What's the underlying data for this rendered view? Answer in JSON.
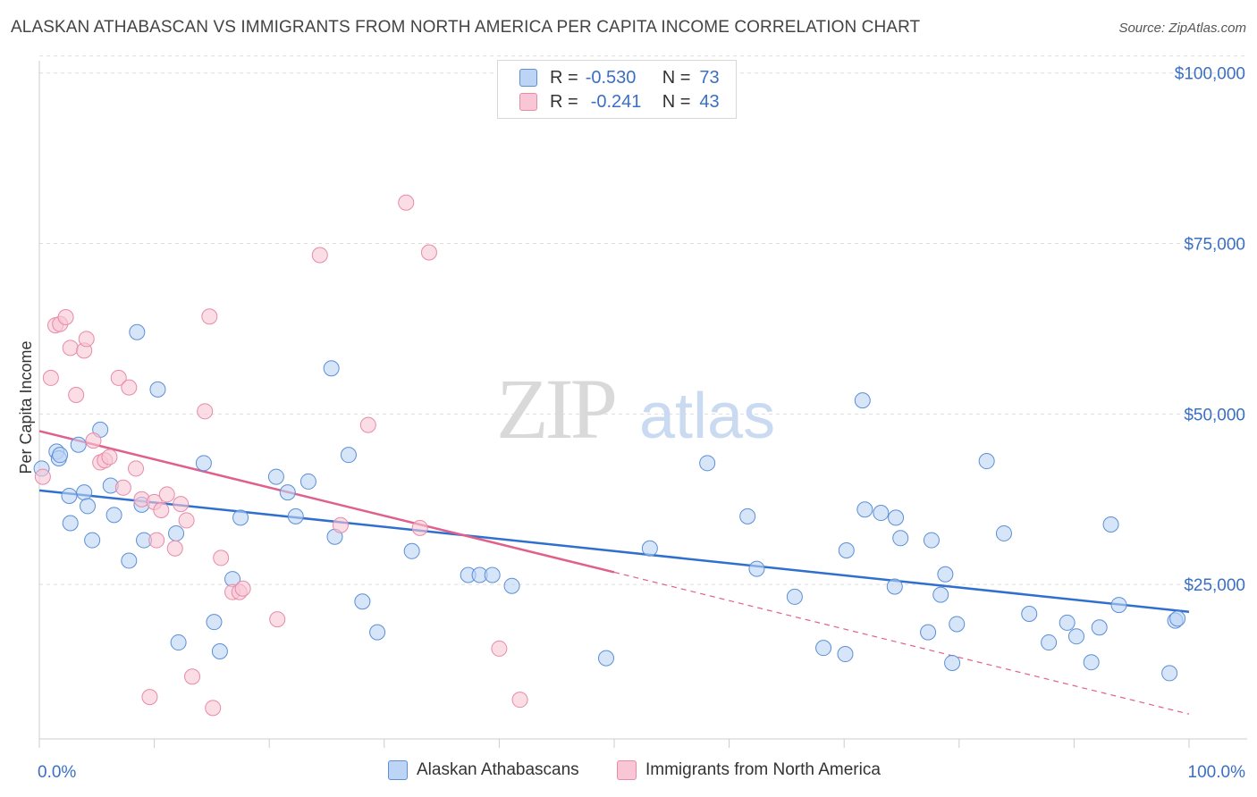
{
  "title": "ALASKAN ATHABASCAN VS IMMIGRANTS FROM NORTH AMERICA PER CAPITA INCOME CORRELATION CHART",
  "source": "Source: ZipAtlas.com",
  "watermark": {
    "zip": "ZIP",
    "atlas": "atlas"
  },
  "legend": {
    "rows": [
      {
        "r_label": "R =",
        "r_value": "-0.530",
        "n_label": "N =",
        "n_value": "73"
      },
      {
        "r_label": "R =",
        "r_value": "-0.241",
        "n_label": "N =",
        "n_value": "43"
      }
    ]
  },
  "bottom_legend": [
    "Alaskan Athabascans",
    "Immigrants from North America"
  ],
  "colors": {
    "blue_fill": "#bcd4f5",
    "blue_stroke": "#5b8fd6",
    "blue_line": "#2f6fce",
    "pink_fill": "#f8c6d5",
    "pink_stroke": "#e88aa8",
    "pink_line": "#e0608c",
    "axis_text": "#3a6fc4",
    "grid": "#dddddd"
  },
  "chart_data": {
    "type": "scatter",
    "title": "ALASKAN ATHABASCAN VS IMMIGRANTS FROM NORTH AMERICA PER CAPITA INCOME CORRELATION CHART",
    "xlabel": "",
    "ylabel": "Per Capita Income",
    "xlim": [
      0,
      100
    ],
    "ylim": [
      0,
      105000
    ],
    "x_tick_labels": [
      "0.0%",
      "100.0%"
    ],
    "y_ticks": [
      25000,
      50000,
      75000,
      100000
    ],
    "y_tick_labels": [
      "$25,000",
      "$50,000",
      "$75,000",
      "$100,000"
    ],
    "grid": true,
    "legend_position": "top-center",
    "series": [
      {
        "name": "Alaskan Athabascans",
        "points": [
          [
            0.2,
            42000
          ],
          [
            1.5,
            44500
          ],
          [
            1.7,
            43500
          ],
          [
            1.8,
            44000
          ],
          [
            2.6,
            38000
          ],
          [
            2.7,
            34000
          ],
          [
            3.4,
            45500
          ],
          [
            3.9,
            38500
          ],
          [
            4.2,
            36500
          ],
          [
            4.6,
            31500
          ],
          [
            5.3,
            47700
          ],
          [
            6.2,
            39500
          ],
          [
            6.5,
            35200
          ],
          [
            7.8,
            28500
          ],
          [
            8.5,
            62000
          ],
          [
            8.9,
            36700
          ],
          [
            9.1,
            31500
          ],
          [
            10.3,
            53600
          ],
          [
            11.9,
            32500
          ],
          [
            12.1,
            16500
          ],
          [
            14.3,
            42800
          ],
          [
            15.2,
            19500
          ],
          [
            15.7,
            15200
          ],
          [
            16.8,
            25800
          ],
          [
            17.5,
            34800
          ],
          [
            20.6,
            40800
          ],
          [
            21.6,
            38500
          ],
          [
            22.3,
            35000
          ],
          [
            23.4,
            40100
          ],
          [
            25.4,
            56700
          ],
          [
            25.7,
            32000
          ],
          [
            26.9,
            44000
          ],
          [
            28.1,
            22500
          ],
          [
            29.4,
            18000
          ],
          [
            32.4,
            29900
          ],
          [
            37.3,
            26400
          ],
          [
            38.3,
            26400
          ],
          [
            39.4,
            26400
          ],
          [
            41.1,
            24800
          ],
          [
            49.3,
            14200
          ],
          [
            53.1,
            30300
          ],
          [
            58.1,
            42800
          ],
          [
            61.6,
            35000
          ],
          [
            62.4,
            27300
          ],
          [
            65.7,
            23200
          ],
          [
            68.2,
            15700
          ],
          [
            70.1,
            14800
          ],
          [
            70.2,
            30000
          ],
          [
            71.6,
            52000
          ],
          [
            71.8,
            36000
          ],
          [
            73.2,
            35500
          ],
          [
            74.4,
            24700
          ],
          [
            74.5,
            34800
          ],
          [
            74.9,
            31800
          ],
          [
            77.3,
            18000
          ],
          [
            77.6,
            31500
          ],
          [
            78.4,
            23500
          ],
          [
            78.8,
            26500
          ],
          [
            79.4,
            13500
          ],
          [
            79.8,
            19200
          ],
          [
            82.4,
            43100
          ],
          [
            83.9,
            32500
          ],
          [
            86.1,
            20700
          ],
          [
            87.8,
            16500
          ],
          [
            89.4,
            19400
          ],
          [
            90.2,
            17400
          ],
          [
            91.5,
            13600
          ],
          [
            92.2,
            18700
          ],
          [
            93.2,
            33800
          ],
          [
            93.9,
            22000
          ],
          [
            98.3,
            12000
          ],
          [
            98.8,
            19700
          ],
          [
            99.0,
            20000
          ]
        ]
      },
      {
        "name": "Immigrants from North America",
        "points": [
          [
            0.3,
            40800
          ],
          [
            1.0,
            55300
          ],
          [
            1.4,
            63000
          ],
          [
            1.8,
            63200
          ],
          [
            2.3,
            64200
          ],
          [
            2.7,
            59700
          ],
          [
            3.2,
            52800
          ],
          [
            3.9,
            59300
          ],
          [
            4.1,
            61000
          ],
          [
            4.7,
            46100
          ],
          [
            5.3,
            42900
          ],
          [
            5.7,
            43200
          ],
          [
            6.1,
            43700
          ],
          [
            6.9,
            55300
          ],
          [
            7.3,
            39200
          ],
          [
            7.8,
            53900
          ],
          [
            8.4,
            42000
          ],
          [
            8.9,
            37500
          ],
          [
            9.6,
            8500
          ],
          [
            10.0,
            37100
          ],
          [
            10.2,
            31500
          ],
          [
            10.6,
            35900
          ],
          [
            11.1,
            38200
          ],
          [
            11.8,
            30300
          ],
          [
            12.3,
            36800
          ],
          [
            12.8,
            34400
          ],
          [
            13.3,
            11500
          ],
          [
            14.4,
            50400
          ],
          [
            14.8,
            64300
          ],
          [
            15.1,
            6900
          ],
          [
            15.8,
            28900
          ],
          [
            16.8,
            23900
          ],
          [
            17.4,
            23900
          ],
          [
            17.7,
            24400
          ],
          [
            20.7,
            19900
          ],
          [
            24.4,
            73300
          ],
          [
            26.2,
            33700
          ],
          [
            28.6,
            48400
          ],
          [
            31.9,
            81000
          ],
          [
            33.1,
            33300
          ],
          [
            33.9,
            73700
          ],
          [
            40.0,
            15600
          ],
          [
            41.8,
            8100
          ]
        ]
      }
    ],
    "trendlines": [
      {
        "series": "Alaskan Athabascans",
        "x": [
          0,
          100
        ],
        "y": [
          38800,
          21000
        ]
      },
      {
        "series": "Immigrants from North America",
        "x": [
          0,
          50
        ],
        "y": [
          47500,
          26800
        ],
        "dashed_extension_to": [
          100,
          6000
        ]
      }
    ]
  }
}
